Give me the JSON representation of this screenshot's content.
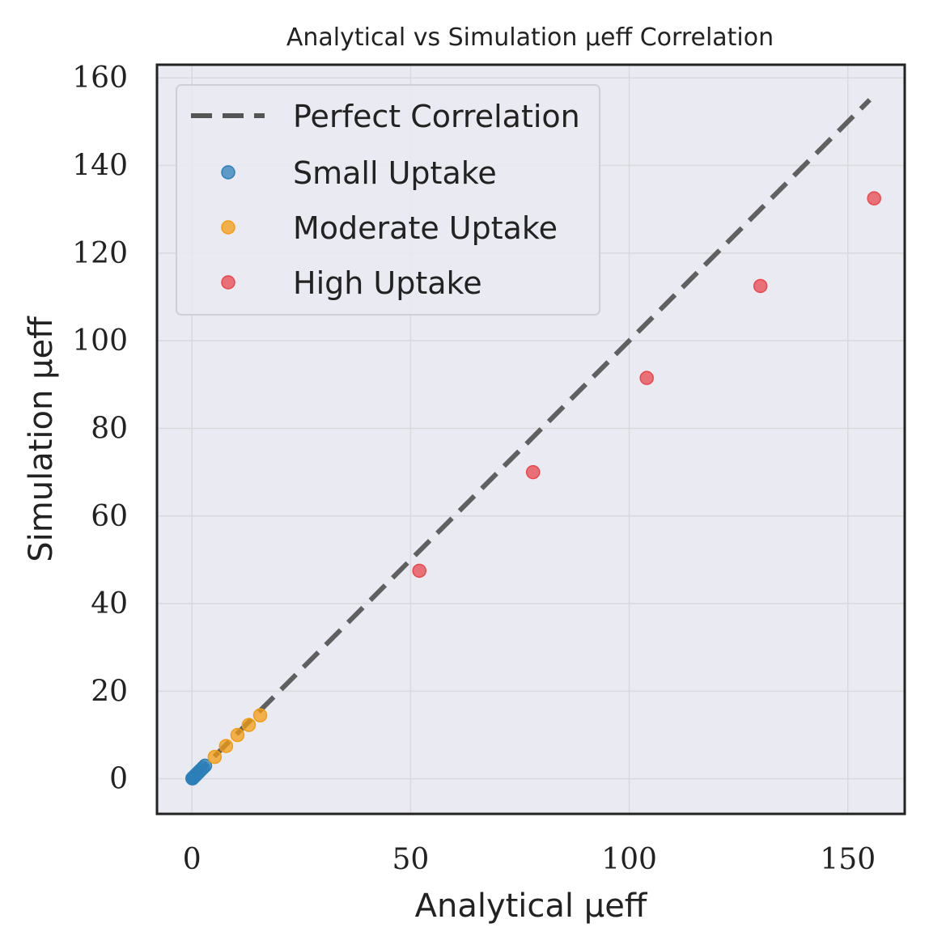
{
  "chart_data": {
    "type": "scatter",
    "title": "Analytical vs Simulation μeff Correlation",
    "xlabel": "Analytical μeff",
    "ylabel": "Simulation μeff",
    "xlim": [
      -8,
      163
    ],
    "ylim": [
      -8,
      163
    ],
    "xticks": [
      0,
      50,
      100,
      150
    ],
    "yticks": [
      0,
      20,
      40,
      60,
      80,
      100,
      120,
      140,
      160
    ],
    "grid": true,
    "legend_position": "top-left",
    "reference_line": {
      "name": "Perfect Correlation",
      "style": "dashed",
      "color": "#555555",
      "x": [
        0,
        155
      ],
      "y": [
        0,
        155
      ]
    },
    "series": [
      {
        "name": "Small Uptake",
        "color": "#2c7fb8",
        "points": [
          [
            0.1,
            0.1
          ],
          [
            0.3,
            0.3
          ],
          [
            0.5,
            0.5
          ],
          [
            0.8,
            0.8
          ],
          [
            1.0,
            1.0
          ],
          [
            1.5,
            1.5
          ],
          [
            2.0,
            2.0
          ],
          [
            2.5,
            2.5
          ],
          [
            3.0,
            3.0
          ]
        ]
      },
      {
        "name": "Moderate Uptake",
        "color": "#f39c12",
        "points": [
          [
            5.2,
            5.0
          ],
          [
            7.8,
            7.5
          ],
          [
            10.4,
            10.0
          ],
          [
            13.0,
            12.3
          ],
          [
            15.6,
            14.5
          ]
        ]
      },
      {
        "name": "High Uptake",
        "color": "#e8474c",
        "points": [
          [
            52,
            47.5
          ],
          [
            78,
            70
          ],
          [
            104,
            91.5
          ],
          [
            130,
            112.5
          ],
          [
            156,
            132.5
          ]
        ]
      }
    ]
  }
}
